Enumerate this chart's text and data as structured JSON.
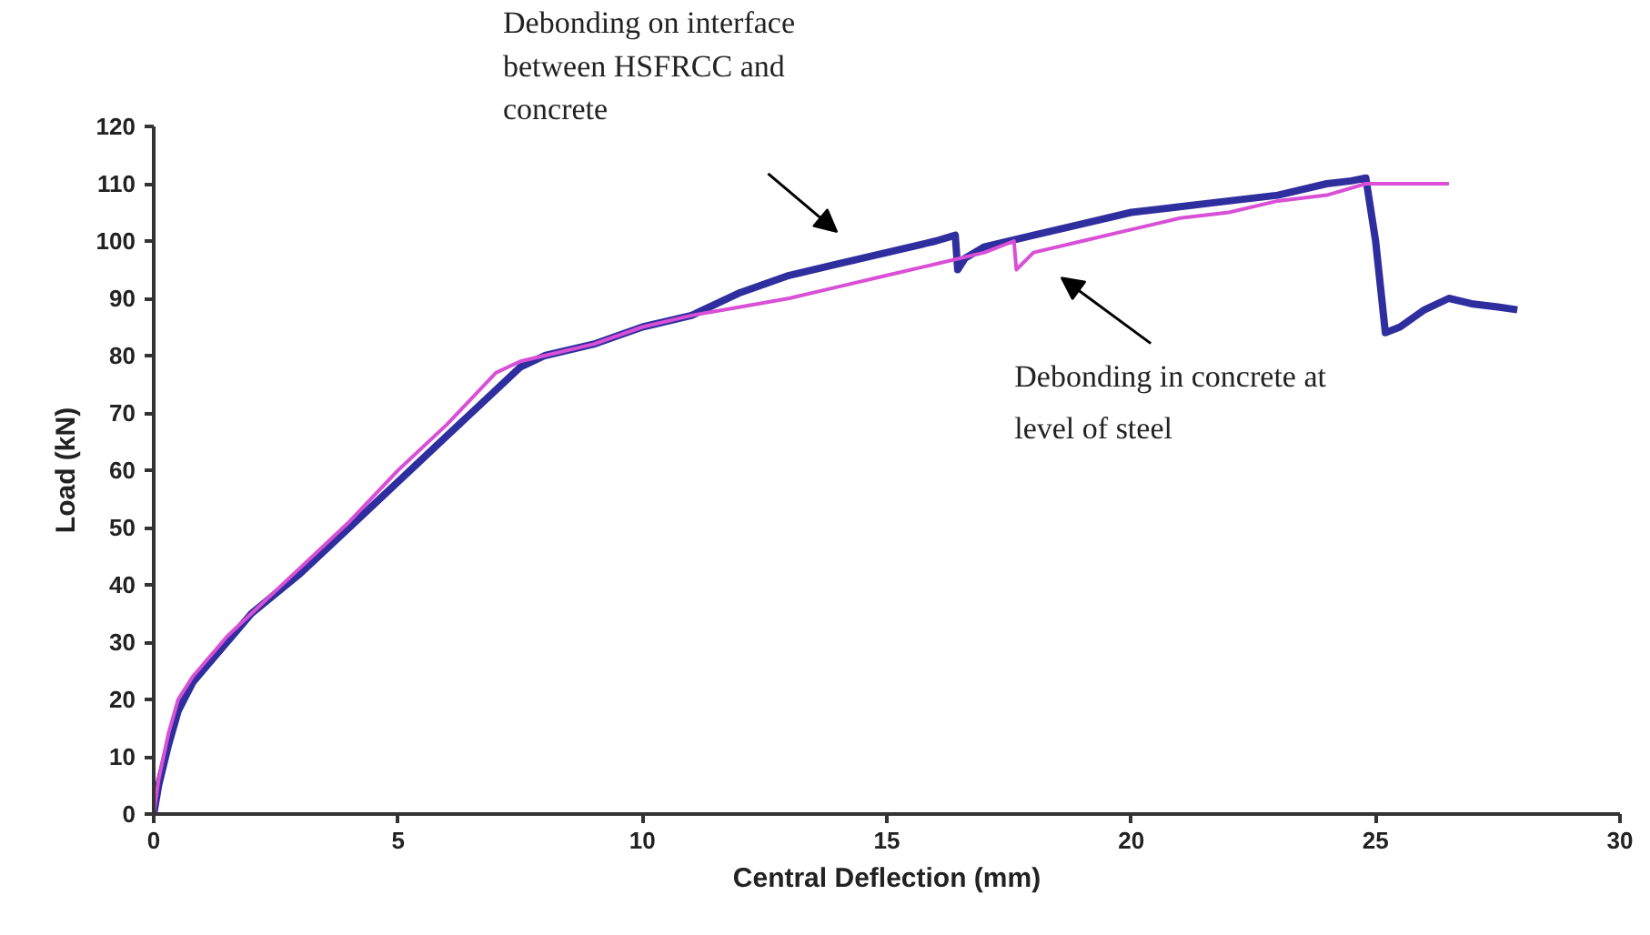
{
  "chart_data": {
    "type": "line",
    "xlabel": "Central Deflection (mm)",
    "ylabel": "Load (kN)",
    "xlim": [
      0,
      30
    ],
    "ylim": [
      0,
      120
    ],
    "xticks": [
      0,
      5,
      10,
      15,
      20,
      25,
      30
    ],
    "yticks": [
      0,
      10,
      20,
      30,
      40,
      50,
      60,
      70,
      80,
      90,
      100,
      110,
      120
    ],
    "grid": false,
    "marker": "none",
    "line_style": "solid",
    "series": [
      {
        "color": "#2e2e9e",
        "x": [
          0,
          0.1,
          0.3,
          0.5,
          0.8,
          1.0,
          1.5,
          2,
          3,
          4,
          5,
          6,
          7,
          7.5,
          8,
          9,
          10,
          11,
          12,
          13,
          14,
          15,
          16,
          16.4,
          16.45,
          16.6,
          17,
          18,
          19,
          20,
          21,
          22,
          23,
          24,
          24.5,
          24.8,
          25.0,
          25.2,
          25.5,
          26,
          26.5,
          27,
          27.5,
          27.9
        ],
        "values": [
          0,
          5,
          12,
          18,
          23,
          25,
          30,
          35,
          42,
          50,
          58,
          66,
          74,
          78,
          80,
          82,
          85,
          87,
          91,
          94,
          96,
          98,
          100,
          101,
          95,
          97,
          99,
          101,
          103,
          105,
          106,
          107,
          108,
          110,
          110.5,
          111,
          100,
          84,
          85,
          88,
          90,
          89,
          88.5,
          88
        ]
      },
      {
        "color": "#d94fd6",
        "x": [
          0,
          0.1,
          0.3,
          0.5,
          0.8,
          1,
          1.5,
          2,
          3,
          4,
          5,
          6,
          7,
          7.5,
          8,
          9,
          10,
          11,
          12,
          13,
          14,
          15,
          16,
          17,
          17.6,
          17.65,
          18,
          19,
          20,
          21,
          22,
          23,
          24,
          24.8,
          26.5
        ],
        "values": [
          0,
          6,
          14,
          20,
          24,
          26,
          31,
          35,
          43,
          51,
          60,
          68,
          77,
          79,
          80,
          82,
          85,
          87,
          88.5,
          90,
          92,
          94,
          96,
          98,
          100,
          95,
          98,
          100,
          102,
          104,
          105,
          107,
          108,
          110,
          110
        ]
      }
    ],
    "annotations": [
      "Debonding on interface between HSFRCC and concrete",
      "Debonding in concrete at level of steel"
    ]
  }
}
